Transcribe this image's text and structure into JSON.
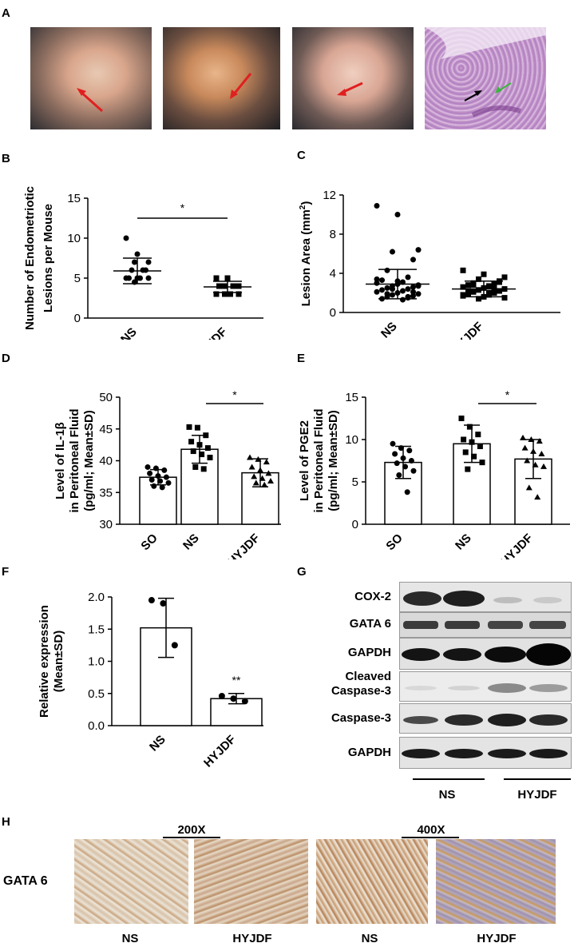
{
  "panels": {
    "A": "A",
    "B": "B",
    "C": "C",
    "D": "D",
    "E": "E",
    "F": "F",
    "G": "G",
    "H": "H"
  },
  "chart_data": [
    {
      "panel": "B",
      "type": "scatter",
      "categories": [
        "NS",
        "HYJDF"
      ],
      "ylabel": "Number of Endometriotic Lesions per Mouse",
      "ylim": [
        0,
        15
      ],
      "yticks": [
        0,
        5,
        10,
        15
      ],
      "series": [
        {
          "category": "NS",
          "mean": 5.9,
          "sd": 1.6,
          "points": [
            10,
            8,
            7,
            7,
            6,
            6,
            6,
            5,
            5,
            5,
            5,
            5,
            4.5
          ]
        },
        {
          "category": "HYJDF",
          "mean": 3.9,
          "sd": 0.7,
          "points": [
            5,
            5,
            4,
            4,
            4,
            4,
            4,
            4,
            3,
            3,
            3,
            3,
            3
          ]
        }
      ],
      "significance": "*"
    },
    {
      "panel": "C",
      "type": "scatter",
      "categories": [
        "NS",
        "HYJDF"
      ],
      "ylabel": "Lesion Area (mm",
      "ylabel_sup": "2",
      "ylabel_end": ")",
      "ylim": [
        0,
        12
      ],
      "yticks": [
        0,
        4,
        8,
        12
      ],
      "series": [
        {
          "category": "NS",
          "mean": 2.9,
          "sd": 1.5,
          "points": [
            10.9,
            10.0,
            6.4,
            6.2,
            5.4,
            4.3,
            3.6,
            3.3,
            3.1,
            3.0,
            2.9,
            2.8,
            2.7,
            2.6,
            2.5,
            2.4,
            2.3,
            2.2,
            2.1,
            2.0,
            1.9,
            1.8,
            1.7,
            1.6,
            1.5,
            1.4,
            1.3,
            3.4,
            3.2,
            2.7,
            2.4,
            2.1,
            1.9,
            1.6
          ]
        },
        {
          "category": "HYJDF",
          "mean": 2.4,
          "sd": 0.8,
          "points": [
            4.3,
            3.9,
            3.6,
            3.4,
            3.2,
            3.0,
            2.9,
            2.8,
            2.7,
            2.6,
            2.5,
            2.4,
            2.3,
            2.2,
            2.1,
            2.0,
            1.9,
            1.8,
            1.7,
            1.6,
            1.5,
            1.4,
            3.1,
            2.8,
            2.5,
            2.2,
            2.0,
            1.8
          ]
        }
      ]
    },
    {
      "panel": "D",
      "type": "bar",
      "categories": [
        "SO",
        "NS",
        "HYJDF"
      ],
      "ylabel_lines": [
        "Level of IL-1β",
        "in Peritoneal Fluid",
        "(pg/ml; Mean±SD)"
      ],
      "ylim": [
        30,
        50
      ],
      "yticks": [
        30,
        35,
        40,
        45,
        50
      ],
      "values": [
        37.4,
        41.8,
        38.1
      ],
      "sd": [
        1.2,
        2.2,
        2.2
      ],
      "points": [
        [
          39,
          38.8,
          38.5,
          38,
          37.6,
          37.4,
          37,
          36.8,
          36.5,
          36,
          35.8
        ],
        [
          45.3,
          45.2,
          44,
          43,
          42.5,
          42,
          41.5,
          41,
          40.5,
          39,
          38.7
        ],
        [
          40.5,
          40.2,
          39.8,
          39,
          38.5,
          38,
          37.5,
          37.2,
          36.8,
          36.5,
          36.2
        ]
      ],
      "significance": "*"
    },
    {
      "panel": "E",
      "type": "bar",
      "categories": [
        "SO",
        "NS",
        "HYJDF"
      ],
      "ylabel_lines": [
        "Level of PGE2",
        "in Peritoneal Fluid",
        "(pg/ml; Mean±SD)"
      ],
      "ylim": [
        0,
        15
      ],
      "yticks": [
        0,
        5,
        10,
        15
      ],
      "values": [
        7.3,
        9.5,
        7.7
      ],
      "sd": [
        1.9,
        2.2,
        2.3
      ],
      "points": [
        [
          9.5,
          9,
          8.7,
          8.3,
          7.8,
          7.5,
          7.2,
          6.8,
          6.3,
          5.8,
          3.8
        ],
        [
          12.5,
          11.5,
          10.6,
          10,
          9.7,
          9.2,
          8.5,
          8,
          7.3,
          6.5
        ],
        [
          10.2,
          10,
          9.8,
          9,
          8.6,
          8.3,
          7.5,
          7,
          6.8,
          4.3,
          3.2
        ]
      ],
      "significance": "*"
    },
    {
      "panel": "F",
      "type": "bar",
      "categories": [
        "NS",
        "HYJDF"
      ],
      "ylabel_lines": [
        "Relative expression",
        "(Mean±SD)"
      ],
      "ylim": [
        0,
        2.0
      ],
      "yticks": [
        "0.0",
        "0.5",
        "1.0",
        "1.5",
        "2.0"
      ],
      "values": [
        1.52,
        0.42
      ],
      "sd": [
        0.46,
        0.08
      ],
      "points": [
        [
          1.95,
          1.9,
          1.25
        ],
        [
          0.46,
          0.42,
          0.38
        ]
      ],
      "significance": "**"
    }
  ],
  "western_blot": {
    "labels": [
      "COX-2",
      "GATA 6",
      "GAPDH",
      "Cleaved",
      "Caspase-3",
      "Caspase-3",
      "GAPDH"
    ],
    "groups": [
      "NS",
      "HYJDF"
    ]
  },
  "ihc": {
    "row_label": "GATA 6",
    "magnifications": [
      "200X",
      "400X"
    ],
    "captions": [
      "NS",
      "HYJDF",
      "NS",
      "HYJDF"
    ]
  }
}
